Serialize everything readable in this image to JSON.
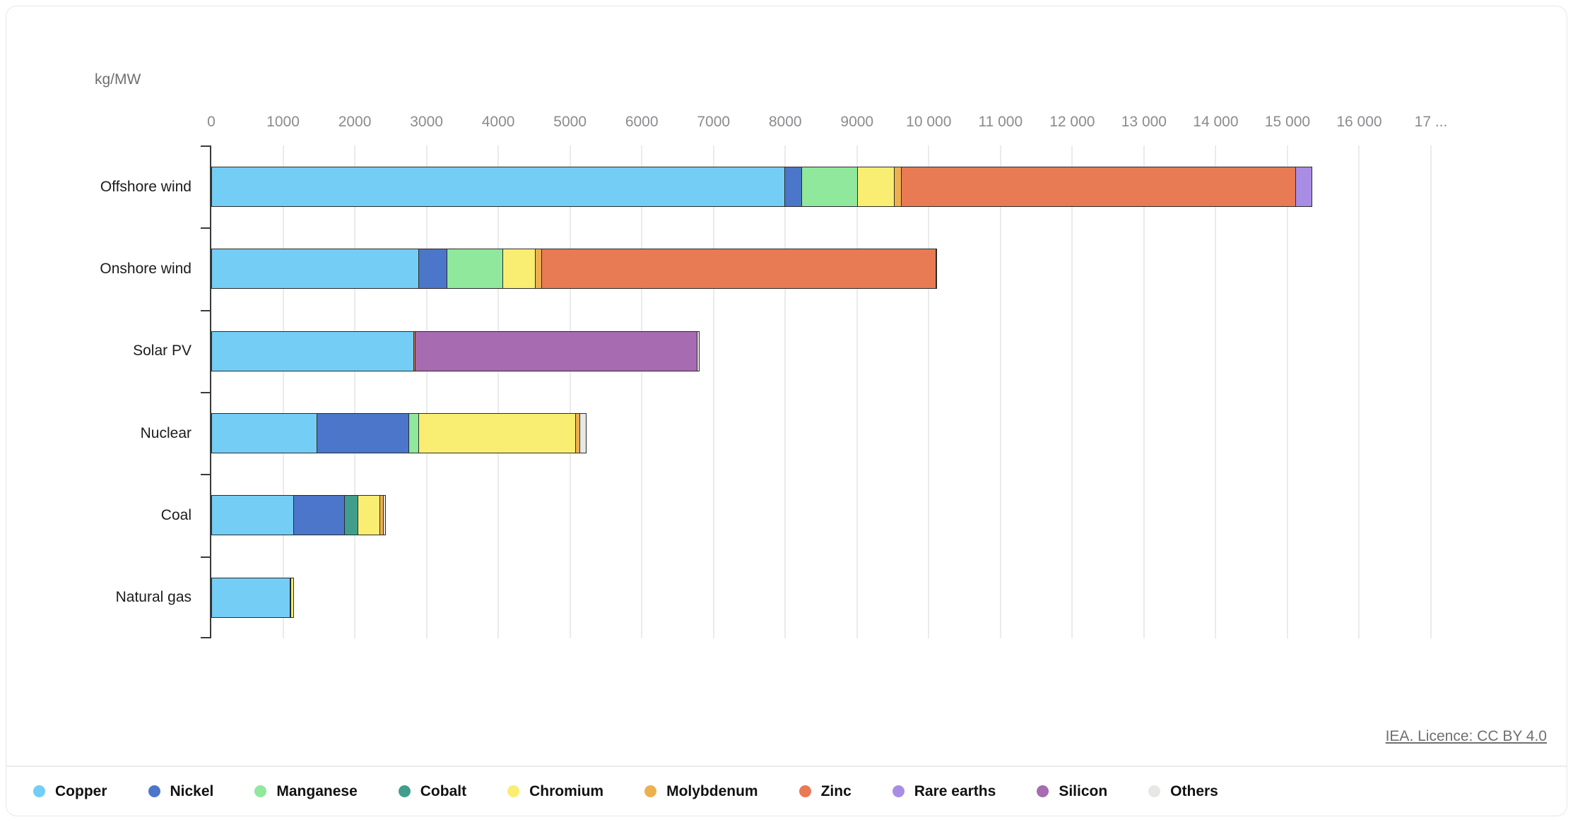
{
  "page": {
    "unit_label": "kg/MW",
    "source_link_text": "IEA. Licence: CC BY 4.0"
  },
  "chart_data": {
    "type": "bar",
    "orientation": "horizontal",
    "stacked": true,
    "title": "",
    "xlabel": "kg/MW",
    "ylabel": "",
    "xlim": [
      0,
      17000
    ],
    "x_tick_interval": 1000,
    "x_tick_labels": [
      "0",
      "1000",
      "2000",
      "3000",
      "4000",
      "5000",
      "6000",
      "7000",
      "8000",
      "9000",
      "10 000",
      "11 000",
      "12 000",
      "13 000",
      "14 000",
      "15 000",
      "16 000",
      "17 ..."
    ],
    "grid": "vertical",
    "legend_position": "bottom",
    "categories": [
      "Offshore wind",
      "Onshore wind",
      "Solar PV",
      "Nuclear",
      "Coal",
      "Natural gas"
    ],
    "series": [
      {
        "name": "Copper",
        "color": "#74cdf4",
        "values": [
          8000,
          2900,
          2822,
          1473,
          1150,
          1100
        ]
      },
      {
        "name": "Nickel",
        "color": "#4b76c9",
        "values": [
          240,
          404,
          1,
          1297,
          721,
          16
        ]
      },
      {
        "name": "Manganese",
        "color": "#8fe89c",
        "values": [
          790,
          780,
          0,
          148,
          5,
          0
        ]
      },
      {
        "name": "Cobalt",
        "color": "#419e8d",
        "values": [
          0,
          0,
          0,
          0,
          201,
          0
        ]
      },
      {
        "name": "Chromium",
        "color": "#f9ee71",
        "values": [
          525,
          470,
          0,
          2190,
          308,
          48
        ]
      },
      {
        "name": "Molybdenum",
        "color": "#edb04f",
        "values": [
          109,
          99,
          0,
          71,
          66,
          0
        ]
      },
      {
        "name": "Zinc",
        "color": "#e87a54",
        "values": [
          5500,
          5500,
          30,
          0,
          0,
          0
        ]
      },
      {
        "name": "Rare earths",
        "color": "#a98de4",
        "values": [
          239,
          14,
          0,
          0,
          0,
          0
        ]
      },
      {
        "name": "Silicon",
        "color": "#a66bb0",
        "values": [
          0,
          0,
          3948,
          0,
          0,
          0
        ]
      },
      {
        "name": "Others",
        "color": "#e7e7e5",
        "values": [
          0,
          0,
          40,
          100,
          33,
          0
        ]
      }
    ]
  }
}
